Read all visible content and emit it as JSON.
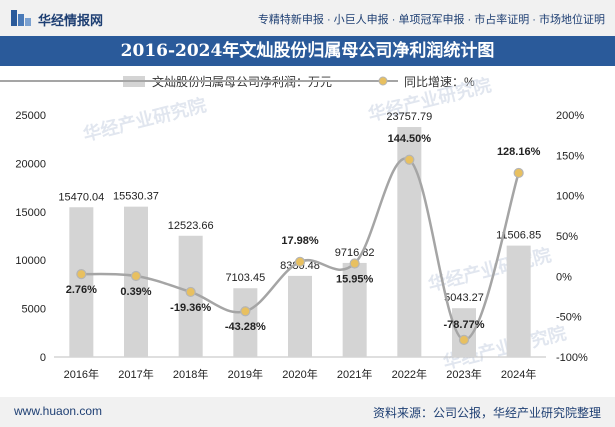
{
  "header": {
    "brand": "华经情报网",
    "nav": "专精特新申报 · 小巨人申报 · 单项冠军申报 · 市占率证明 · 市场地位证明"
  },
  "title": "2016-2024年文灿股份归属母公司净利润统计图",
  "footer": {
    "website": "www.huaon.com",
    "source": "资料来源：公司公报，华经产业研究院整理"
  },
  "watermark": "华经产业研究院",
  "colors": {
    "bar": "#d4d4d4",
    "line": "#a5a5a5",
    "marker": "#e8c060",
    "title_bg": "#2a5a9a"
  },
  "chart_data": {
    "type": "bar",
    "categories": [
      "2016年",
      "2017年",
      "2018年",
      "2019年",
      "2020年",
      "2021年",
      "2022年",
      "2023年",
      "2024年"
    ],
    "series": [
      {
        "name": "文灿股份归属母公司净利润：万元",
        "type": "bar",
        "axis": "left",
        "values": [
          15470.04,
          15530.37,
          12523.66,
          7103.45,
          8380.48,
          9716.82,
          23757.79,
          5043.27,
          11506.85
        ],
        "labels": [
          "15470.04",
          "15530.37",
          "12523.66",
          "7103.45",
          "8380.48",
          "9716.82",
          "23757.79",
          "5043.27",
          "11506.85"
        ]
      },
      {
        "name": "同比增速：%",
        "type": "line",
        "axis": "right",
        "values": [
          2.76,
          0.39,
          -19.36,
          -43.28,
          17.98,
          15.95,
          144.5,
          -78.77,
          128.16
        ],
        "labels": [
          "2.76%",
          "0.39%",
          "-19.36%",
          "-43.28%",
          "17.98%",
          "15.95%",
          "144.50%",
          "-78.77%",
          "128.16%"
        ]
      }
    ],
    "yleft": {
      "ylim": [
        0,
        25000
      ],
      "ticks": [
        "0",
        "5000",
        "10000",
        "15000",
        "20000",
        "25000"
      ],
      "tick_values": [
        0,
        5000,
        10000,
        15000,
        20000,
        25000
      ]
    },
    "yright": {
      "ylim": [
        -100,
        200
      ],
      "ticks": [
        "-100%",
        "-50%",
        "0%",
        "50%",
        "100%",
        "150%",
        "200%"
      ],
      "tick_values": [
        -100,
        -50,
        0,
        50,
        100,
        150,
        200
      ]
    },
    "legend": "top-center",
    "grid": false
  }
}
